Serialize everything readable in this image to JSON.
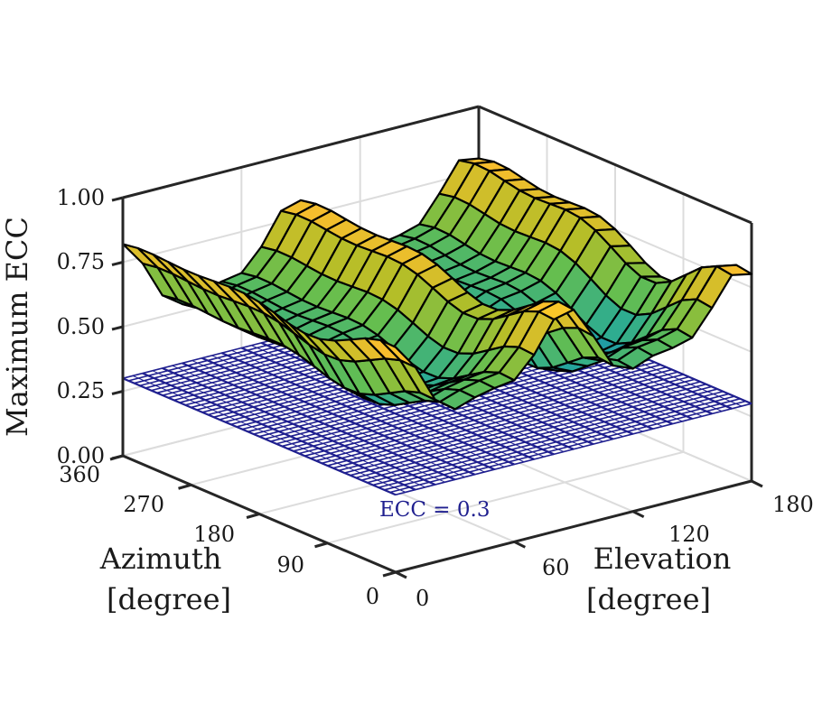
{
  "chart_data": {
    "type": "surface3d",
    "title": "",
    "zlabel": "Maximum ECC",
    "xlabel_lines": [
      "Elevation",
      "[degree]"
    ],
    "ylabel_lines": [
      "Azimuth",
      "[degree]"
    ],
    "x_axis": {
      "name": "Elevation",
      "unit": "degree",
      "range": [
        0,
        180
      ],
      "ticks": [
        0,
        60,
        120,
        180
      ],
      "tick_labels": [
        "0",
        "60",
        "120",
        "180"
      ]
    },
    "y_axis": {
      "name": "Azimuth",
      "unit": "degree",
      "range": [
        0,
        360
      ],
      "ticks": [
        0,
        90,
        180,
        270,
        360
      ],
      "tick_labels": [
        "0",
        "90",
        "180",
        "270",
        "360"
      ]
    },
    "z_axis": {
      "name": "Maximum ECC",
      "range": [
        0,
        1
      ],
      "ticks": [
        0,
        0.25,
        0.5,
        0.75,
        1.0
      ],
      "tick_labels": [
        "0.00",
        "0.25",
        "0.50",
        "0.75",
        "1.00"
      ]
    },
    "grid": true,
    "colormap": "parula",
    "surface": {
      "name": "Maximum ECC",
      "elevation_samples": [
        0,
        10,
        20,
        30,
        40,
        50,
        60,
        70,
        80,
        90,
        100,
        110,
        120,
        130,
        140,
        150,
        160,
        170,
        180
      ],
      "azimuth_samples": [
        0,
        20,
        40,
        60,
        80,
        100,
        120,
        140,
        160,
        180,
        200,
        220,
        240,
        260,
        280,
        300,
        320,
        340,
        360
      ],
      "approx_value_range": [
        0.45,
        0.9
      ]
    },
    "threshold_plane": {
      "name": "ECC = 0.3",
      "z": 0.3,
      "color": "#1f1f8f"
    },
    "annotations": [
      {
        "text": "ECC = 0.3",
        "color": "#1f1f8f"
      }
    ]
  }
}
